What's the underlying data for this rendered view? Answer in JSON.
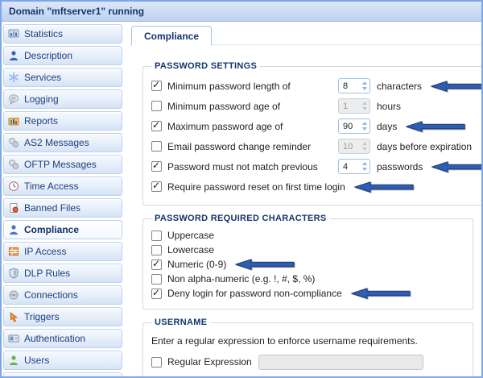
{
  "window": {
    "title": "Domain \"mftserver1\" running"
  },
  "colors": {
    "frame_border": "#7da6ee",
    "titlebar_gradient_top": "#dde8f9",
    "titlebar_gradient_bottom": "#bed1f0",
    "sidebar_text": "#1d3f7d",
    "legend_text": "#15356b",
    "annotation_arrow": "#2e5eb2"
  },
  "sidebar": {
    "items": [
      {
        "label": "Statistics",
        "icon": "statistics-icon",
        "selected": false
      },
      {
        "label": "Description",
        "icon": "description-icon",
        "selected": false
      },
      {
        "label": "Services",
        "icon": "services-icon",
        "selected": false
      },
      {
        "label": "Logging",
        "icon": "logging-icon",
        "selected": false
      },
      {
        "label": "Reports",
        "icon": "reports-icon",
        "selected": false
      },
      {
        "label": "AS2 Messages",
        "icon": "messages-icon",
        "selected": false
      },
      {
        "label": "OFTP Messages",
        "icon": "messages-icon",
        "selected": false
      },
      {
        "label": "Time Access",
        "icon": "clock-icon",
        "selected": false
      },
      {
        "label": "Banned Files",
        "icon": "banned-file-icon",
        "selected": false
      },
      {
        "label": "Compliance",
        "icon": "person-icon",
        "selected": true
      },
      {
        "label": "IP Access",
        "icon": "firewall-icon",
        "selected": false
      },
      {
        "label": "DLP Rules",
        "icon": "shield-icon",
        "selected": false
      },
      {
        "label": "Connections",
        "icon": "connections-icon",
        "selected": false
      },
      {
        "label": "Triggers",
        "icon": "trigger-icon",
        "selected": false
      },
      {
        "label": "Authentication",
        "icon": "id-card-icon",
        "selected": false
      },
      {
        "label": "Users",
        "icon": "user-icon",
        "selected": false
      },
      {
        "label": "",
        "icon": "group-icon",
        "selected": false,
        "partial": true
      }
    ]
  },
  "tabs": [
    {
      "label": "Compliance",
      "active": true
    }
  ],
  "panel": {
    "password_settings": {
      "legend": "PASSWORD SETTINGS",
      "rows": [
        {
          "checked": true,
          "label": "Minimum password length of",
          "value": "8",
          "unit": "characters",
          "enabled": true,
          "arrow": true
        },
        {
          "checked": false,
          "label": "Minimum password age of",
          "value": "1",
          "unit": "hours",
          "enabled": false,
          "arrow": false
        },
        {
          "checked": true,
          "label": "Maximum password age of",
          "value": "90",
          "unit": "days",
          "enabled": true,
          "arrow": true
        },
        {
          "checked": false,
          "label": "Email password change reminder",
          "value": "10",
          "unit": "days before expiration",
          "enabled": false,
          "arrow": false
        },
        {
          "checked": true,
          "label": "Password must not match previous",
          "value": "4",
          "unit": "passwords",
          "enabled": true,
          "arrow": true
        },
        {
          "checked": true,
          "label": "Require password reset on first time login",
          "arrow": true
        }
      ]
    },
    "password_required_characters": {
      "legend": "PASSWORD REQUIRED CHARACTERS",
      "rows": [
        {
          "checked": false,
          "label": "Uppercase",
          "arrow": false
        },
        {
          "checked": false,
          "label": "Lowercase",
          "arrow": false
        },
        {
          "checked": true,
          "label": "Numeric (0-9)",
          "arrow": true
        },
        {
          "checked": false,
          "label": "Non alpha-numeric (e.g. !, #, $, %)",
          "arrow": false
        },
        {
          "checked": true,
          "label": "Deny login for password non-compliance",
          "arrow": true
        }
      ]
    },
    "username": {
      "legend": "USERNAME",
      "description": "Enter a regular expression to enforce username requirements.",
      "row": {
        "checked": false,
        "label": "Regular Expression",
        "input_value": "",
        "input_enabled": false
      }
    }
  }
}
